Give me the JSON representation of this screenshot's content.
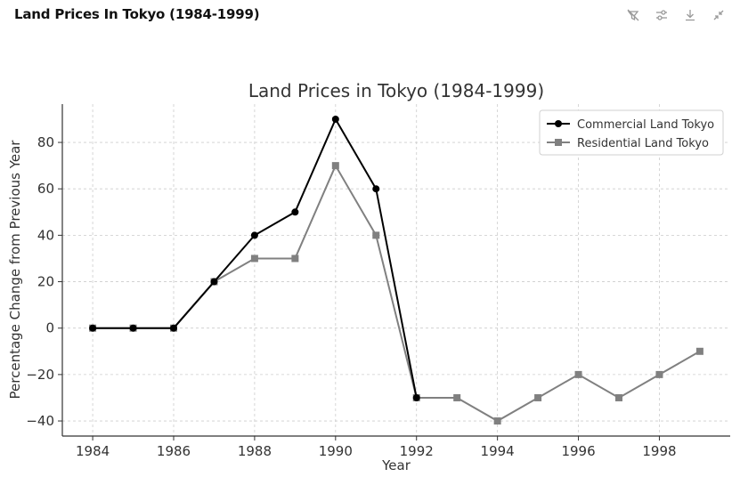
{
  "window": {
    "title": "Land Prices In Tokyo (1984-1999)",
    "toolbar": [
      {
        "name": "hide-icon"
      },
      {
        "name": "settings-sliders-icon"
      },
      {
        "name": "download-icon"
      },
      {
        "name": "collapse-icon"
      }
    ]
  },
  "colors": {
    "commercial": "#000000",
    "residential": "#808080",
    "grid": "#cccccc"
  },
  "chart_data": {
    "type": "line",
    "title": "Land Prices in Tokyo (1984-1999)",
    "xlabel": "Year",
    "ylabel": "Percentage Change from Previous Year",
    "x": [
      1984,
      1985,
      1986,
      1987,
      1988,
      1989,
      1990,
      1991,
      1992,
      1993,
      1994,
      1995,
      1996,
      1997,
      1998,
      1999
    ],
    "xticks": [
      "1984",
      "1986",
      "1988",
      "1990",
      "1992",
      "1994",
      "1996",
      "1998"
    ],
    "yticks": [
      "−40",
      "−20",
      "0",
      "20",
      "40",
      "60",
      "80"
    ],
    "xlim": [
      1983.25,
      1999.75
    ],
    "ylim": [
      -46.5,
      96.5
    ],
    "grid": true,
    "legend_position": "top-right",
    "series": [
      {
        "name": "Commercial Land Tokyo",
        "marker": "circle",
        "color": "#000000",
        "values": [
          0,
          0,
          0,
          20,
          40,
          50,
          90,
          60,
          -30,
          null,
          null,
          null,
          null,
          null,
          null,
          null
        ]
      },
      {
        "name": "Residential Land Tokyo",
        "marker": "square",
        "color": "#808080",
        "values": [
          0,
          0,
          0,
          20,
          30,
          30,
          70,
          40,
          -30,
          -30,
          -40,
          -30,
          -20,
          -30,
          -20,
          -10
        ]
      }
    ]
  }
}
